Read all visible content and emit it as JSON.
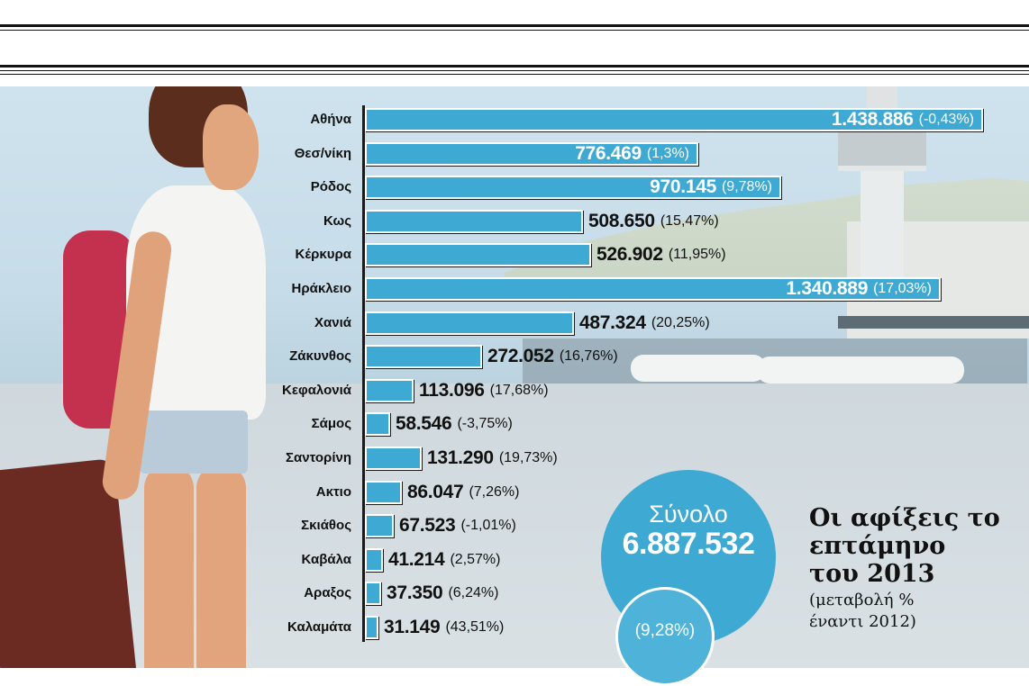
{
  "colors": {
    "bar": "#3ea9d2",
    "total_circle": "#3ea9d2",
    "text": "#111111"
  },
  "chart_data": {
    "type": "bar",
    "orientation": "horizontal",
    "title": "Οι αφίξεις το επτάμηνο του 2013",
    "subtitle": "(μεταβολή % έναντι 2012)",
    "xlabel": "",
    "ylabel": "",
    "xlim": [
      0,
      1500000
    ],
    "grid": false,
    "categories": [
      "Αθήνα",
      "Θεσ/νίκη",
      "Ρόδος",
      "Κως",
      "Κέρκυρα",
      "Ηράκλειο",
      "Χανιά",
      "Ζάκυνθος",
      "Κεφαλονιά",
      "Σάμος",
      "Σαντορίνη",
      "Ακτιο",
      "Σκιάθος",
      "Καβάλα",
      "Αραξος",
      "Καλαμάτα"
    ],
    "values": [
      1438886,
      776469,
      970145,
      508650,
      526902,
      1340889,
      487324,
      272052,
      113096,
      58546,
      131290,
      86047,
      67523,
      41214,
      37350,
      31149
    ],
    "value_labels": [
      "1.438.886",
      "776.469",
      "970.145",
      "508.650",
      "526.902",
      "1.340.889",
      "487.324",
      "272.052",
      "113.096",
      "58.546",
      "131.290",
      "86.047",
      "67.523",
      "41.214",
      "37.350",
      "31.149"
    ],
    "change_labels": [
      "(-0,43%)",
      "(1,3%)",
      "(9,78%)",
      "(15,47%)",
      "(11,95%)",
      "(17,03%)",
      "(20,25%)",
      "(16,76%)",
      "(17,68%)",
      "(-3,75%)",
      "(19,73%)",
      "(7,26%)",
      "(-1,01%)",
      "(2,57%)",
      "(6,24%)",
      "(43,51%)"
    ],
    "changes_pct": [
      -0.43,
      1.3,
      9.78,
      15.47,
      11.95,
      17.03,
      20.25,
      16.76,
      17.68,
      -3.75,
      19.73,
      7.26,
      -1.01,
      2.57,
      6.24,
      43.51
    ]
  },
  "total": {
    "label": "Σύνολο",
    "value": "6.887.532",
    "change": "(9,28%)"
  },
  "title_lines": [
    "Οι αφίξεις το",
    "επτάμηνο",
    "του 2013"
  ],
  "note_lines": [
    "(μεταβολή %",
    "έναντι 2012)"
  ]
}
